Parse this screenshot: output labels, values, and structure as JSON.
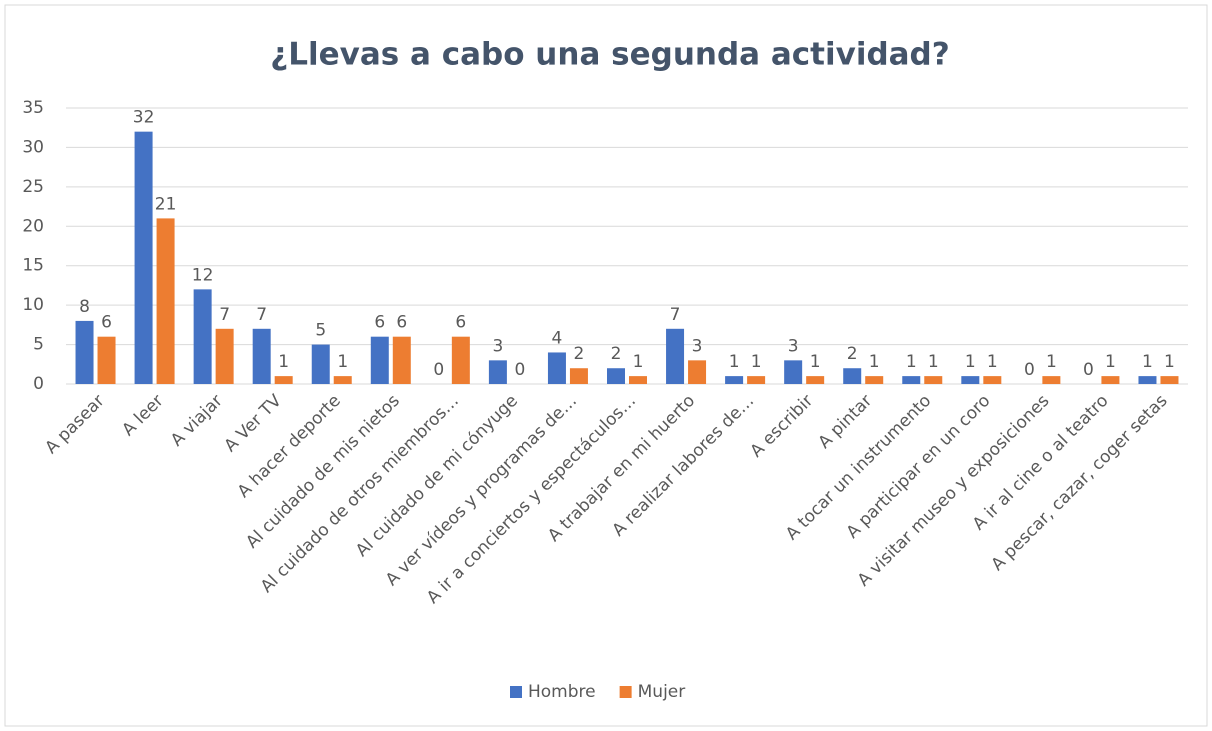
{
  "chart_data": {
    "type": "bar",
    "title": "¿Llevas a cabo una segunda actividad?",
    "categories": [
      "A pasear",
      "A leer",
      "A viajar",
      "A Ver TV",
      "A hacer deporte",
      "Al cuidado de mis nietos",
      "Al cuidado de otros miembros…",
      "Al cuidado de mi cónyuge",
      "A ver vídeos y programas de…",
      "A ir a conciertos y espectáculos…",
      "A trabajar en mi huerto",
      "A realizar labores de…",
      "A escribir",
      "A pintar",
      "A tocar un instrumento",
      "A participar en un coro",
      "A visitar museo y exposiciones",
      "A ir al cine o al teatro",
      "A pescar, cazar, coger setas"
    ],
    "series": [
      {
        "name": "Hombre",
        "color": "#4472c4",
        "values": [
          8,
          32,
          12,
          7,
          5,
          6,
          0,
          3,
          4,
          2,
          7,
          1,
          3,
          2,
          1,
          1,
          0,
          0,
          1
        ]
      },
      {
        "name": "Mujer",
        "color": "#ed7d31",
        "values": [
          6,
          21,
          7,
          1,
          1,
          6,
          6,
          0,
          2,
          1,
          3,
          1,
          1,
          1,
          1,
          1,
          1,
          1,
          1
        ]
      }
    ],
    "ylim": [
      0,
      35
    ],
    "yticks": [
      0,
      5,
      10,
      15,
      20,
      25,
      30,
      35
    ],
    "grid": true,
    "legend": "bottom"
  }
}
